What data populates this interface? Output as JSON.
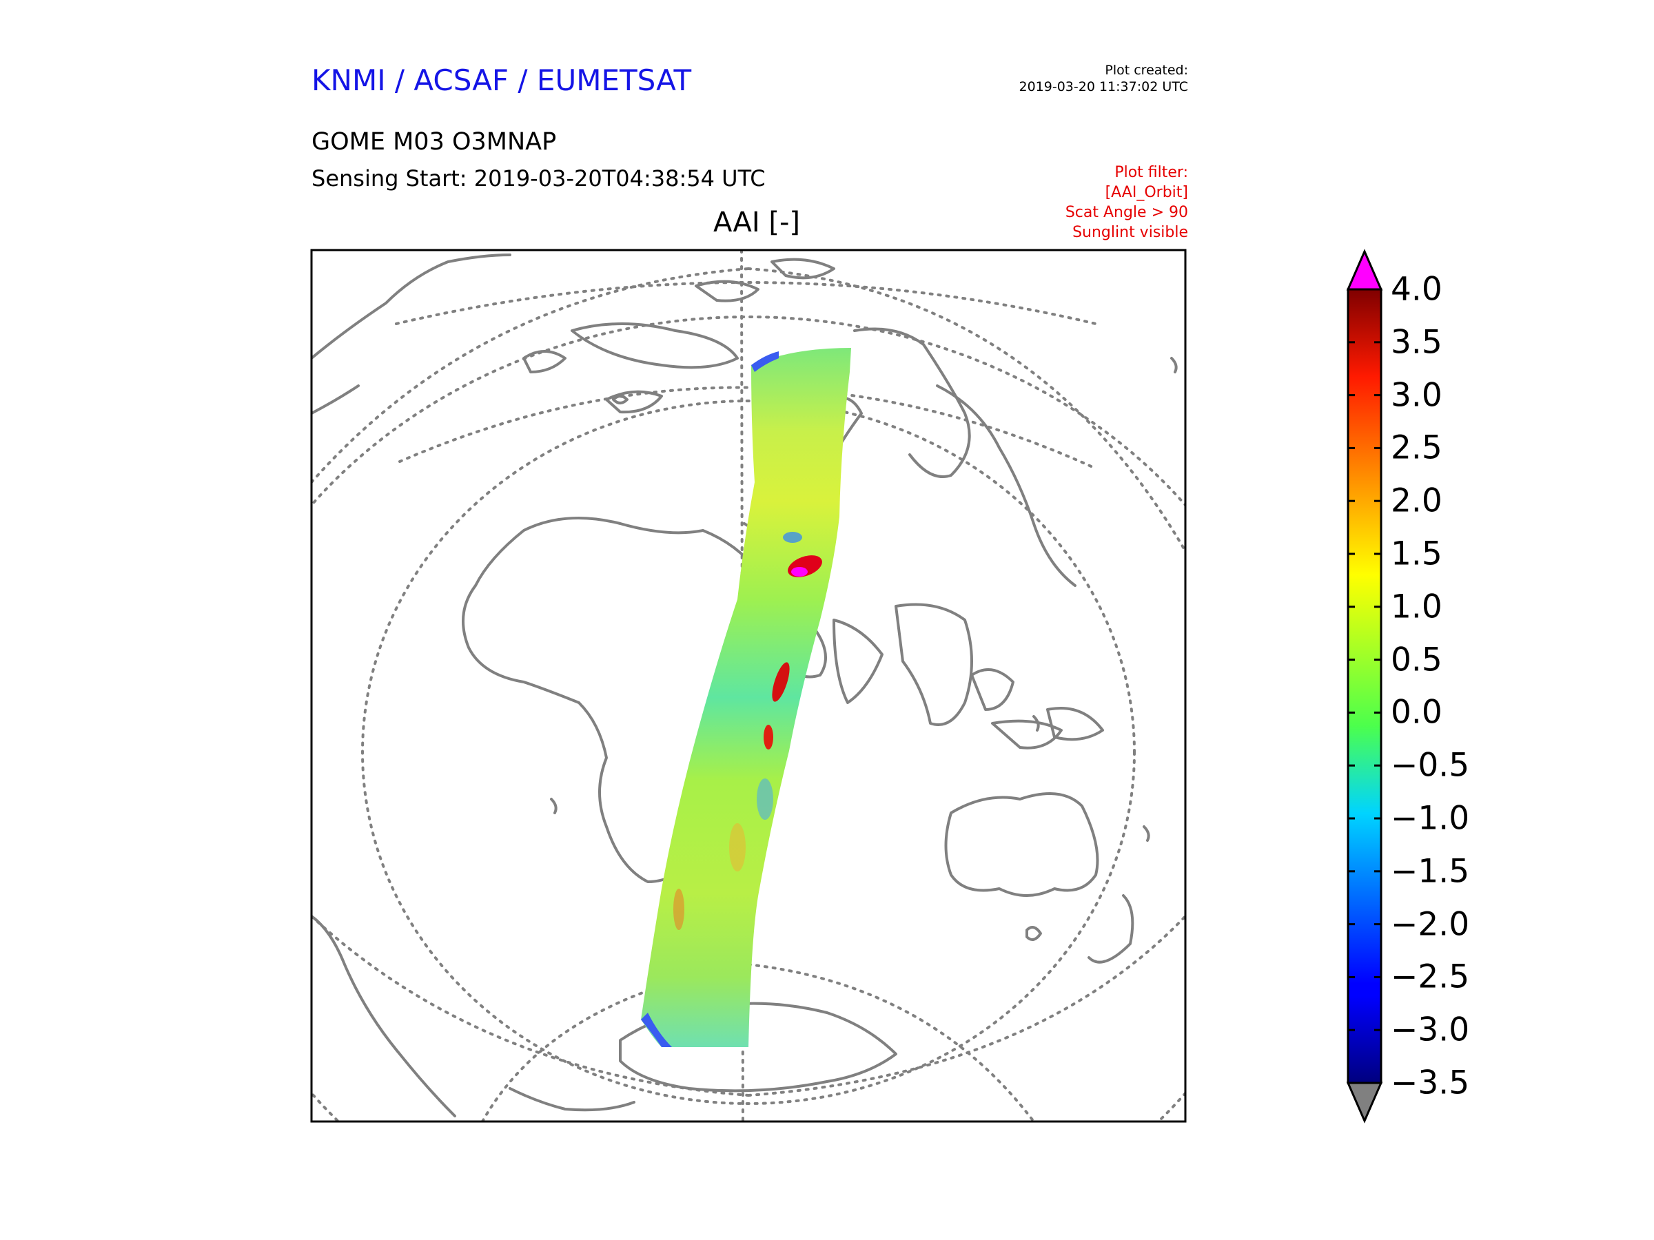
{
  "header": {
    "org": "KNMI / ACSAF / EUMETSAT",
    "created_label": "Plot created:",
    "created_time": "2019-03-20 11:37:02 UTC",
    "product": "GOME M03 O3MNAP",
    "sensing": "Sensing Start: 2019-03-20T04:38:54 UTC",
    "filter_lines": [
      "Plot filter:",
      "[AAI_Orbit]",
      "Scat Angle > 90",
      "Sunglint visible"
    ]
  },
  "map": {
    "title": "AAI [-]",
    "colors": {
      "coast": "#808080",
      "grid": "#808080",
      "frame": "#000000",
      "over": "#ff00ff",
      "under": "#808080"
    }
  },
  "colorbar": {
    "ticks": [
      "4.0",
      "3.5",
      "3.0",
      "2.5",
      "2.0",
      "1.5",
      "1.0",
      "0.5",
      "0.0",
      "−0.5",
      "−1.0",
      "−1.5",
      "−2.0",
      "−2.5",
      "−3.0",
      "−3.5"
    ],
    "min": -3.5,
    "max": 4.0
  }
}
